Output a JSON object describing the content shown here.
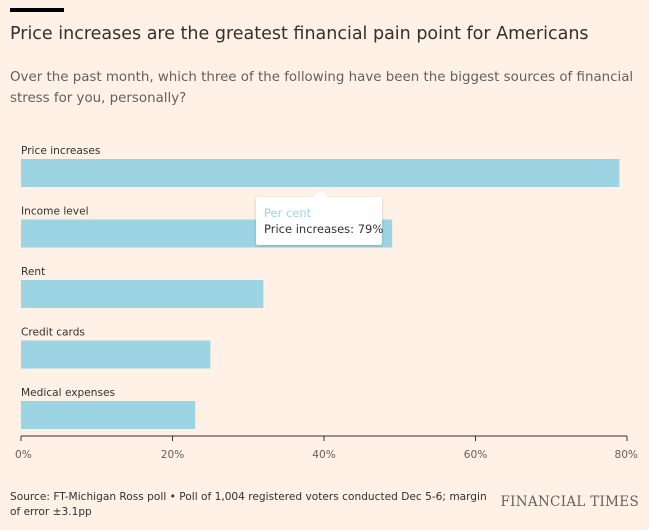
{
  "title": "Price increases are the greatest financial pain point for Americans",
  "subtitle": "Over the past month, which three of the following have been the biggest sources of financial stress for you, personally?",
  "tooltip": {
    "series_name": "Per cent",
    "value_text": "Price increases: 79%"
  },
  "source": "Source: FT-Michigan Ross poll • Poll of 1,004 registered voters conducted Dec 5-6; margin of error ±3.1pp",
  "logo": "FINANCIAL TIMES",
  "colors": {
    "bar": "#9DD4E4",
    "axis": "#33302E",
    "background": "#FFF1E5"
  },
  "chart_data": {
    "type": "bar",
    "orientation": "horizontal",
    "series_name": "Per cent",
    "categories": [
      "Price increases",
      "Income level",
      "Rent",
      "Credit cards",
      "Medical expenses"
    ],
    "values": [
      79,
      49,
      32,
      25,
      23
    ],
    "xlim": [
      0,
      80
    ],
    "xticks": [
      0,
      20,
      40,
      60,
      80
    ],
    "xtick_labels": [
      "0%",
      "20%",
      "40%",
      "60%",
      "80%"
    ],
    "xlabel": "",
    "ylabel": ""
  }
}
